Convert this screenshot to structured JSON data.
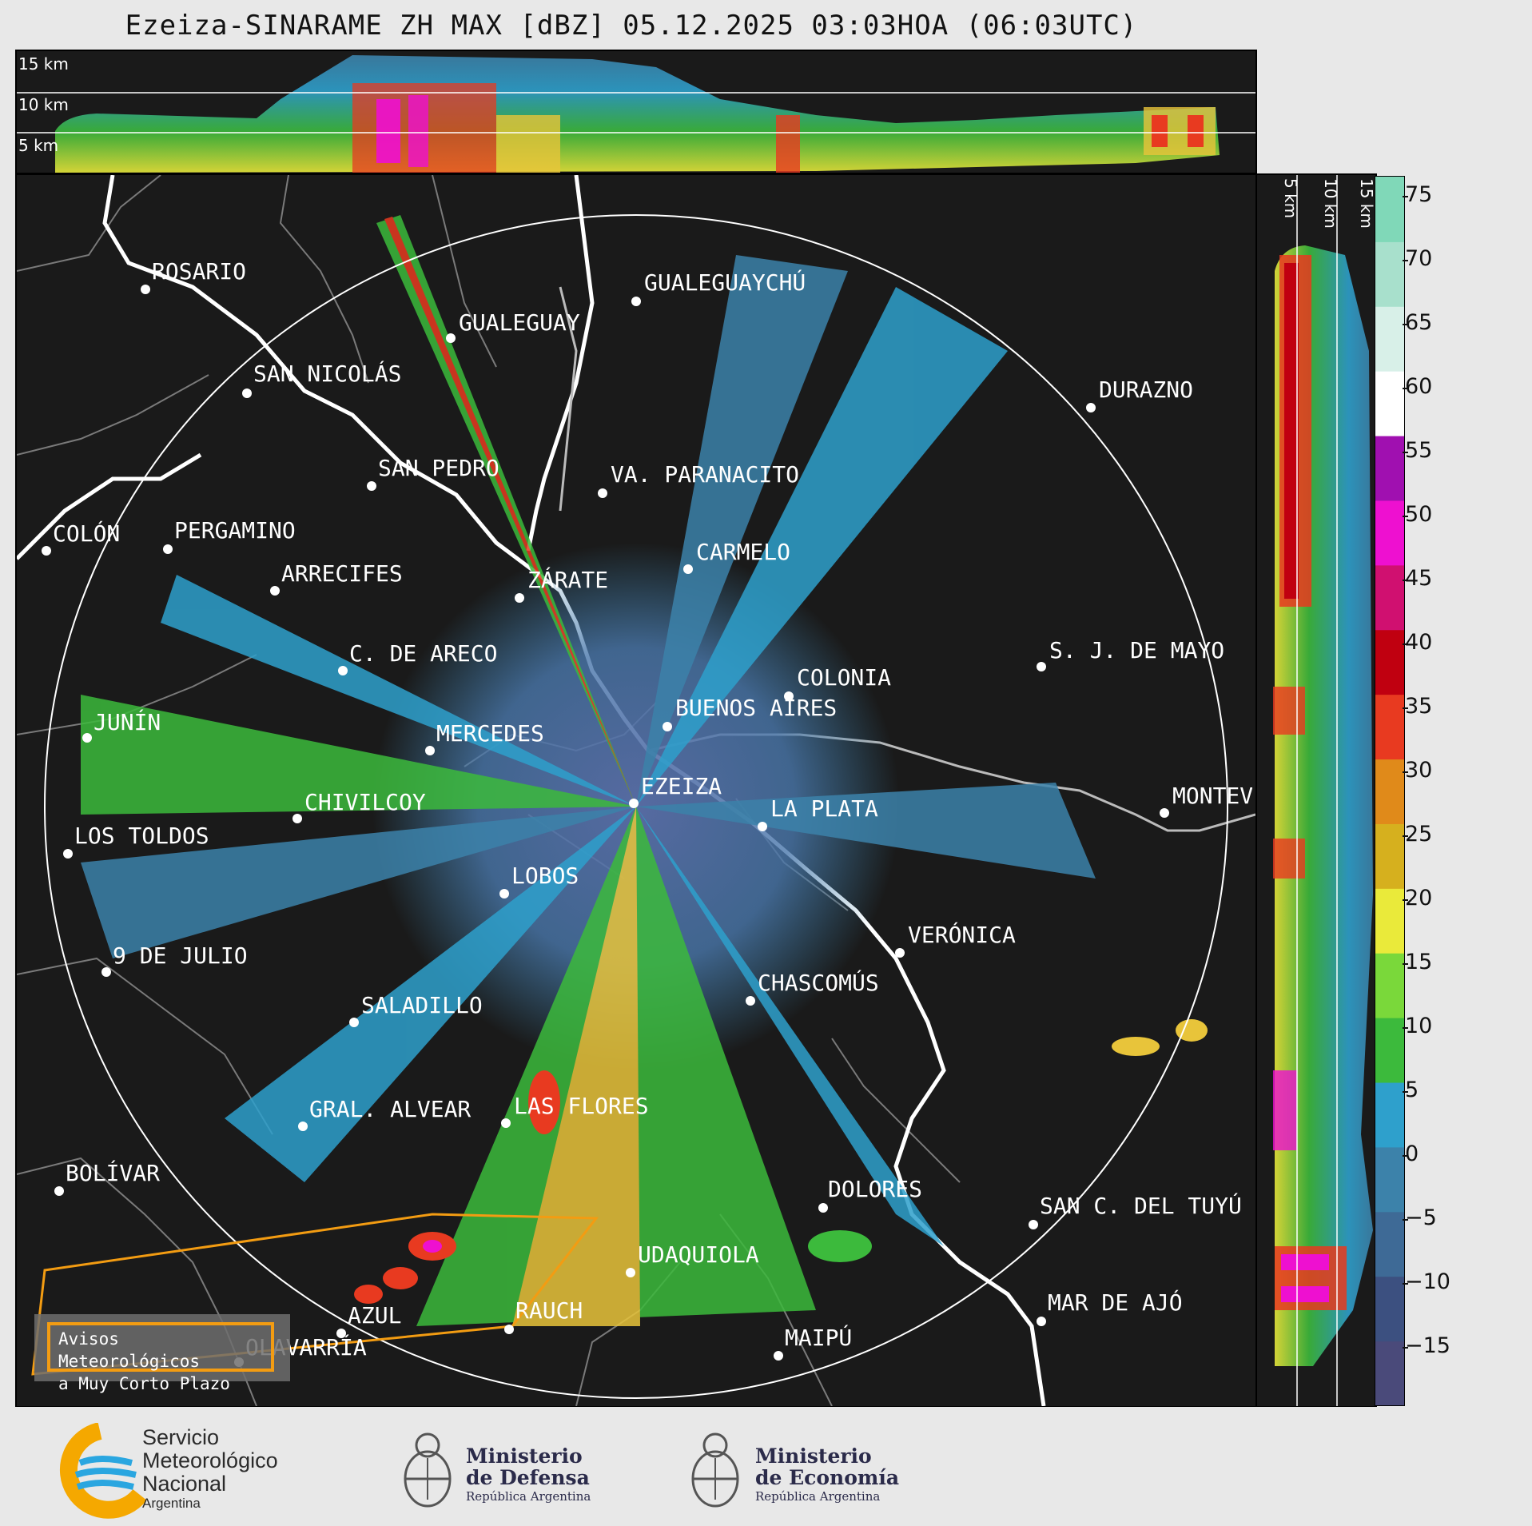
{
  "title": "Ezeiza-SINARAME ZH MAX [dBZ] 05.12.2025 03:03HOA (06:03UTC)",
  "top_panel": {
    "height_labels": [
      "15 km",
      "10 km",
      "5 km"
    ]
  },
  "right_panel": {
    "height_labels": [
      "5 km",
      "10 km",
      "15 km"
    ]
  },
  "colorbar": {
    "unit": "dBZ",
    "ticks": [
      "75",
      "70",
      "65",
      "60",
      "55",
      "50",
      "45",
      "40",
      "35",
      "30",
      "25",
      "20",
      "15",
      "10",
      "5",
      "0",
      "−5",
      "−10",
      "−15"
    ],
    "range": [
      -20,
      77
    ],
    "colors": [
      "#4a4a7a",
      "#3c5080",
      "#3e6a96",
      "#3c82aa",
      "#2ea0cc",
      "#3cba3c",
      "#7ad83a",
      "#eaea3a",
      "#d6b01e",
      "#e08a1a",
      "#e83a20",
      "#c00010",
      "#d01070",
      "#ee10d0",
      "#a010b0",
      "#ffffff",
      "#d8f0e8",
      "#a8e0cc",
      "#80d8b8"
    ]
  },
  "map": {
    "cities": [
      {
        "name": "ROSARIO"
      },
      {
        "name": "GUALEGUAYCHÚ"
      },
      {
        "name": "GUALEGUAY"
      },
      {
        "name": "SAN NICOLÁS"
      },
      {
        "name": "DURAZNO"
      },
      {
        "name": "SAN PEDRO"
      },
      {
        "name": "VA. PARANACITO"
      },
      {
        "name": "COLÓN"
      },
      {
        "name": "PERGAMINO"
      },
      {
        "name": "CARMELO"
      },
      {
        "name": "ARRECIFES"
      },
      {
        "name": "ZÁRATE"
      },
      {
        "name": "S. J. DE MAYO"
      },
      {
        "name": "C. DE ARECO"
      },
      {
        "name": "COLONIA"
      },
      {
        "name": "BUENOS AIRES"
      },
      {
        "name": "JUNÍN"
      },
      {
        "name": "MERCEDES"
      },
      {
        "name": "MONTEVIDEO"
      },
      {
        "name": "EZEIZA"
      },
      {
        "name": "CHIVILCOY"
      },
      {
        "name": "LA PLATA"
      },
      {
        "name": "LOS TOLDOS"
      },
      {
        "name": "LOBOS"
      },
      {
        "name": "VERÓNICA"
      },
      {
        "name": "9 DE JULIO"
      },
      {
        "name": "CHASCOMÚS"
      },
      {
        "name": "SALADILLO"
      },
      {
        "name": "GRAL. ALVEAR"
      },
      {
        "name": "LAS FLORES"
      },
      {
        "name": "BOLÍVAR"
      },
      {
        "name": "DOLORES"
      },
      {
        "name": "SAN C. DEL TUYÚ"
      },
      {
        "name": "UDAQUIOLA"
      },
      {
        "name": "RAUCH"
      },
      {
        "name": "AZUL"
      },
      {
        "name": "MAR DE AJÓ"
      },
      {
        "name": "MAIPÚ"
      },
      {
        "name": "OLAVARRÍA"
      }
    ],
    "warning": {
      "line1": "Avisos Meteorológicos",
      "line2": "a Muy Corto Plazo"
    }
  },
  "footer": {
    "smn": {
      "line1": "Servicio",
      "line2": "Meteorológico",
      "line3": "Nacional",
      "line4": "Argentina"
    },
    "defensa": {
      "line1": "Ministerio",
      "line2": "de Defensa",
      "line3": "República Argentina"
    },
    "economia": {
      "line1": "Ministerio",
      "line2": "de Economía",
      "line3": "República Argentina"
    }
  }
}
